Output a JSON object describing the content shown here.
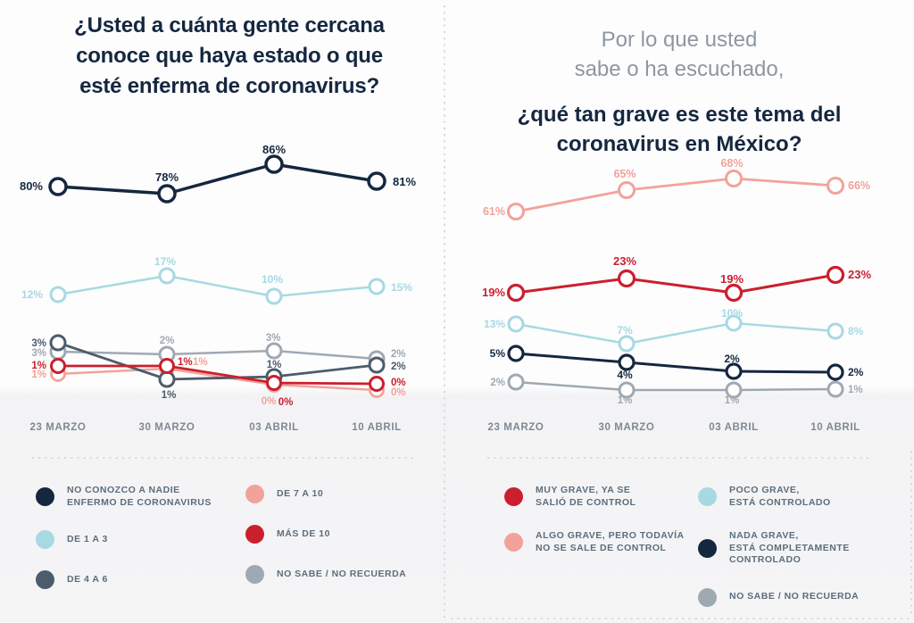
{
  "palette": {
    "navy": "#15273f",
    "light_blue": "#a7d9e3",
    "dark_slate": "#4c5c6b",
    "salmon": "#f2a29b",
    "red": "#cb1f2d",
    "gray": "#9fa9b2",
    "subtitle_gray": "#8d97a1",
    "axis_label": "#7e8994",
    "legend_text": "#5c6d7c",
    "dash": "#cdd3d8",
    "background_top": "#fdfdfe",
    "background_bottom": "#f5f5f6"
  },
  "chart_data": [
    {
      "type": "line",
      "title": "¿Usted a cuánta gente cercana\nconoce que haya estado o que\nesté enferma de coronavirus?",
      "unit": "%",
      "grid": false,
      "ylim": [
        0,
        100
      ],
      "legend_position": "bottom",
      "categories": [
        "23 MARZO",
        "30 MARZO",
        "03 ABRIL",
        "10 ABRIL"
      ],
      "series": [
        {
          "name": "NO CONOZCO A NADIE ENFERMO DE CORONAVIRUS",
          "color": "#15273f",
          "values": [
            80,
            78,
            86,
            81
          ]
        },
        {
          "name": "DE 1 A 3",
          "color": "#a7d9e3",
          "values": [
            12,
            17,
            10,
            15
          ]
        },
        {
          "name": "DE 4 A 6",
          "color": "#4c5c6b",
          "values": [
            3,
            1,
            1,
            2
          ]
        },
        {
          "name": "DE 7 A 10",
          "color": "#f2a29b",
          "values": [
            1,
            1,
            0,
            0
          ]
        },
        {
          "name": "MÁS DE 10",
          "color": "#cb1f2d",
          "values": [
            1,
            1,
            0,
            0
          ]
        },
        {
          "name": "NO SABE / NO RECUERDA",
          "color": "#9fa9b2",
          "values": [
            3,
            2,
            3,
            2
          ]
        }
      ],
      "legend": {
        "columns": [
          [
            {
              "color": "#15273f",
              "label": "NO CONOZCO A NADIE\nENFERMO DE CORONAVIRUS"
            },
            {
              "color": "#a7d9e3",
              "label": "DE 1 A 3"
            },
            {
              "color": "#4c5c6b",
              "label": "DE 4 A 6"
            }
          ],
          [
            {
              "color": "#f2a29b",
              "label": "DE 7 A 10"
            },
            {
              "color": "#cb1f2d",
              "label": "MÁS DE 10"
            },
            {
              "color": "#9fa9b2",
              "label": "NO SABE / NO RECUERDA"
            }
          ]
        ]
      }
    },
    {
      "type": "line",
      "subtitle": "Por lo que usted\nsabe o ha escuchado,",
      "title": "¿qué tan grave es este tema del\ncoronavirus en México?",
      "unit": "%",
      "grid": false,
      "ylim": [
        0,
        100
      ],
      "legend_position": "bottom",
      "categories": [
        "23 MARZO",
        "30 MARZO",
        "03 ABRIL",
        "10 ABRIL"
      ],
      "series": [
        {
          "name": "MUY GRAVE, YA SE SALIÓ DE CONTROL",
          "color": "#cb1f2d",
          "values": [
            19,
            23,
            19,
            23
          ]
        },
        {
          "name": "ALGO GRAVE, PERO TODAVÍA NO SE SALE DE CONTROL",
          "color": "#f2a29b",
          "values": [
            61,
            65,
            68,
            66
          ]
        },
        {
          "name": "POCO GRAVE, ESTÁ CONTROLADO",
          "color": "#a7d9e3",
          "values": [
            13,
            7,
            10,
            8
          ]
        },
        {
          "name": "NADA GRAVE, ESTÁ COMPLETAMENTE CONTROLADO",
          "color": "#15273f",
          "values": [
            5,
            4,
            2,
            2
          ]
        },
        {
          "name": "NO SABE / NO RECUERDA",
          "color": "#9fa9b2",
          "values": [
            2,
            1,
            1,
            1
          ]
        }
      ],
      "legend": {
        "columns": [
          [
            {
              "color": "#cb1f2d",
              "label": "MUY GRAVE, YA SE\nSALIÓ DE CONTROL"
            },
            {
              "color": "#f2a29b",
              "label": "ALGO GRAVE, PERO TODAVÍA\nNO SE SALE DE CONTROL"
            }
          ],
          [
            {
              "color": "#a7d9e3",
              "label": "POCO GRAVE,\nESTÁ CONTROLADO"
            },
            {
              "color": "#15273f",
              "label": "NADA GRAVE,\nESTÁ COMPLETAMENTE\nCONTROLADO"
            },
            {
              "color": "#9fa9b2",
              "label": "NO SABE / NO RECUERDA"
            }
          ]
        ]
      }
    }
  ]
}
